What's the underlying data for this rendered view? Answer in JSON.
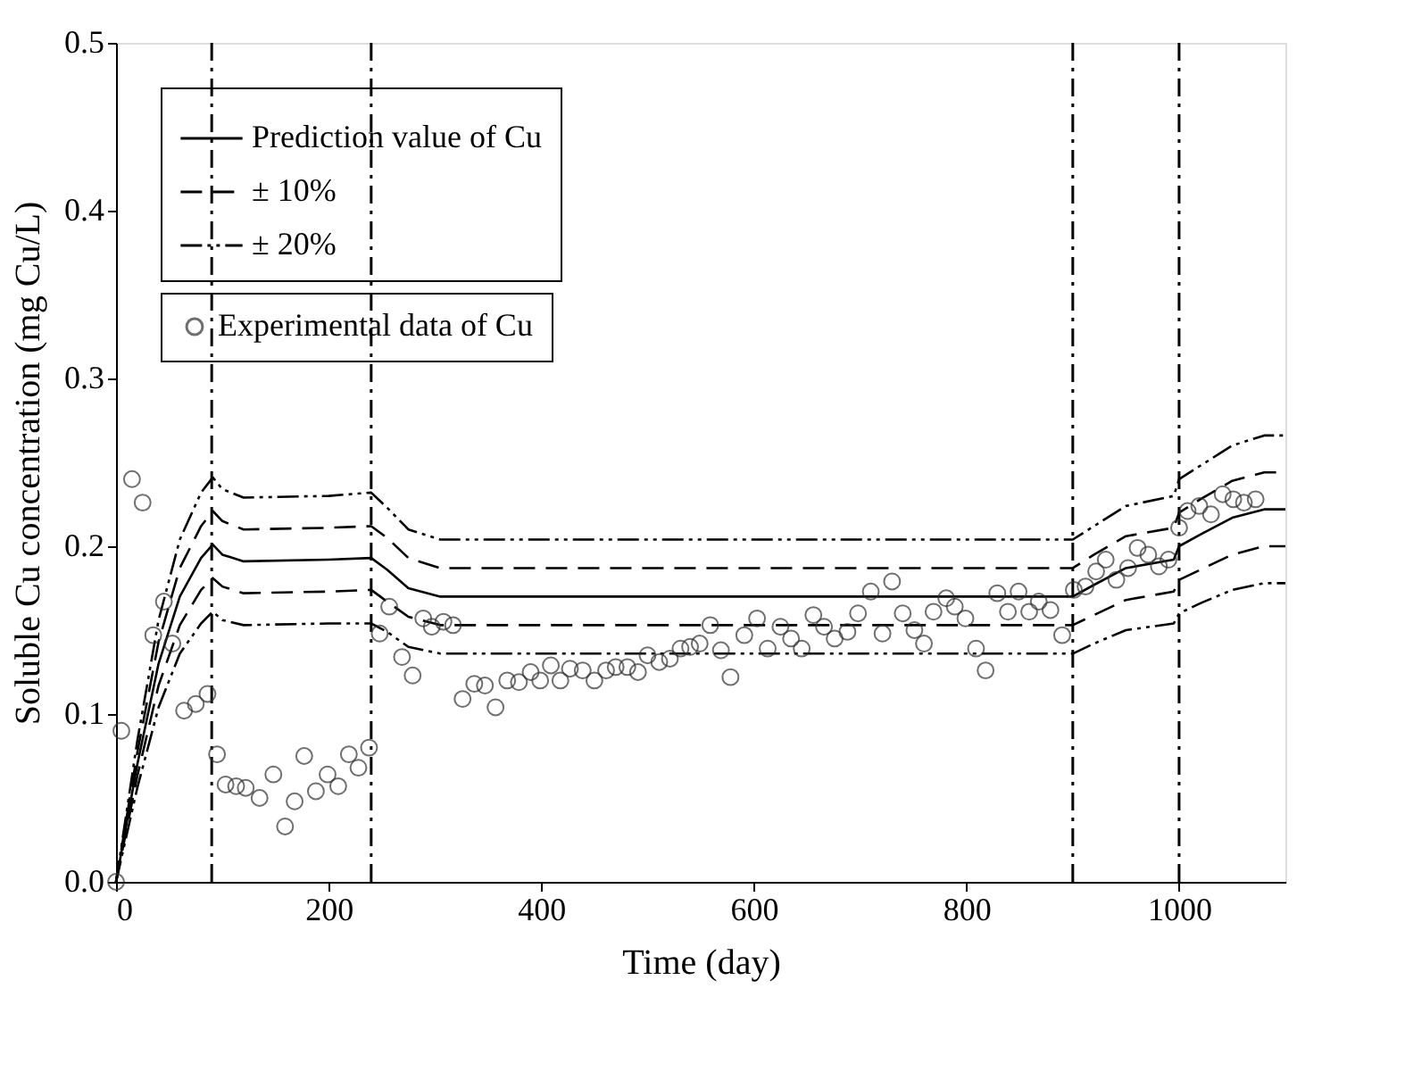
{
  "chart_data": {
    "type": "line",
    "xlabel": "Time (day)",
    "ylabel": "Soluble Cu concentration (mg Cu/L)",
    "xlim": [
      0,
      1100
    ],
    "xticks": [
      0,
      200,
      400,
      600,
      800,
      1000
    ],
    "ylim": [
      0,
      0.5
    ],
    "yticks": [
      {
        "value": 0,
        "label": "0.0"
      },
      {
        "value": 0.1,
        "label": "0.1"
      },
      {
        "value": 0.2,
        "label": "0.2"
      },
      {
        "value": 0.3,
        "label": "0.3"
      },
      {
        "value": 0.4,
        "label": "0.4"
      },
      {
        "value": 0.5,
        "label": "0.5"
      }
    ],
    "grid": false,
    "legend": "top left",
    "x": [
      0,
      20,
      40,
      60,
      80,
      91,
      100,
      120,
      200,
      240,
      255,
      275,
      305,
      900,
      920,
      950,
      995,
      1000,
      1020,
      1050,
      1080,
      1100
    ],
    "series": [
      {
        "name": "Prediction value of Cu",
        "color": "#000000",
        "line_style": "solid",
        "values": [
          0,
          0.07,
          0.13,
          0.17,
          0.193,
          0.201,
          0.195,
          0.191,
          0.192,
          0.193,
          0.186,
          0.175,
          0.17,
          0.17,
          0.177,
          0.187,
          0.192,
          0.2,
          0.207,
          0.217,
          0.222,
          0.222
        ]
      },
      {
        "name": "± 10%",
        "color": "#000000",
        "line_style": "dashed",
        "values": [
          0,
          0.077,
          0.143,
          0.187,
          0.212,
          0.221,
          0.215,
          0.21,
          0.211,
          0.212,
          0.205,
          0.193,
          0.187,
          0.187,
          0.195,
          0.206,
          0.211,
          0.22,
          0.228,
          0.239,
          0.244,
          0.244
        ]
      },
      {
        "color": "#000000",
        "line_style": "dashed",
        "values": [
          0,
          0.063,
          0.117,
          0.153,
          0.174,
          0.181,
          0.176,
          0.172,
          0.173,
          0.174,
          0.167,
          0.158,
          0.153,
          0.153,
          0.159,
          0.168,
          0.173,
          0.18,
          0.186,
          0.195,
          0.2,
          0.2
        ]
      },
      {
        "name": "± 20%",
        "color": "#000000",
        "line_style": "dotted",
        "values": [
          0,
          0.084,
          0.156,
          0.204,
          0.232,
          0.241,
          0.234,
          0.229,
          0.23,
          0.232,
          0.223,
          0.21,
          0.204,
          0.204,
          0.212,
          0.224,
          0.23,
          0.24,
          0.248,
          0.26,
          0.266,
          0.266
        ]
      },
      {
        "color": "#000000",
        "line_style": "dotted",
        "values": [
          0,
          0.056,
          0.104,
          0.136,
          0.154,
          0.161,
          0.156,
          0.153,
          0.154,
          0.154,
          0.149,
          0.14,
          0.136,
          0.136,
          0.142,
          0.15,
          0.154,
          0.16,
          0.166,
          0.174,
          0.178,
          0.178
        ]
      },
      {
        "name": "Experimental data of Cu",
        "type": "scatter",
        "marker": "circle",
        "color": "#333333",
        "x": [
          0,
          5,
          15,
          25,
          35,
          45,
          53,
          64,
          75,
          86,
          95,
          103,
          113,
          122,
          135,
          148,
          159,
          168,
          177,
          188,
          199,
          209,
          219,
          228,
          238,
          248,
          257,
          269,
          279,
          289,
          297,
          308,
          317,
          326,
          337,
          347,
          357,
          368,
          379,
          390,
          399,
          409,
          418,
          427,
          439,
          450,
          461,
          470,
          481,
          491,
          500,
          511,
          521,
          531,
          540,
          549,
          559,
          569,
          578,
          591,
          603,
          613,
          625,
          635,
          645,
          656,
          666,
          676,
          688,
          698,
          710,
          721,
          730,
          740,
          751,
          760,
          769,
          781,
          789,
          799,
          809,
          818,
          829,
          839,
          849,
          859,
          868,
          879,
          890,
          901,
          912,
          922,
          931,
          941,
          952,
          961,
          971,
          981,
          990,
          1000,
          1008,
          1019,
          1030,
          1041,
          1051,
          1061,
          1072
        ],
        "values": [
          0,
          0.09,
          0.24,
          0.226,
          0.147,
          0.167,
          0.142,
          0.102,
          0.106,
          0.112,
          0.076,
          0.058,
          0.057,
          0.056,
          0.05,
          0.064,
          0.033,
          0.048,
          0.075,
          0.054,
          0.064,
          0.057,
          0.076,
          0.068,
          0.08,
          0.148,
          0.164,
          0.134,
          0.123,
          0.157,
          0.152,
          0.155,
          0.153,
          0.109,
          0.118,
          0.117,
          0.104,
          0.12,
          0.119,
          0.125,
          0.12,
          0.129,
          0.12,
          0.127,
          0.126,
          0.12,
          0.126,
          0.128,
          0.128,
          0.125,
          0.135,
          0.131,
          0.133,
          0.139,
          0.14,
          0.142,
          0.153,
          0.138,
          0.122,
          0.147,
          0.157,
          0.139,
          0.152,
          0.145,
          0.139,
          0.159,
          0.152,
          0.145,
          0.149,
          0.16,
          0.173,
          0.148,
          0.179,
          0.16,
          0.15,
          0.142,
          0.161,
          0.169,
          0.164,
          0.157,
          0.139,
          0.126,
          0.172,
          0.161,
          0.173,
          0.161,
          0.167,
          0.162,
          0.147,
          0.174,
          0.176,
          0.185,
          0.192,
          0.18,
          0.187,
          0.199,
          0.195,
          0.188,
          0.192,
          0.211,
          0.221,
          0.224,
          0.219,
          0.231,
          0.228,
          0.226,
          0.228
        ]
      }
    ],
    "ref_lines": [
      {
        "axis": "x",
        "value": 90,
        "line_style": "dashdot"
      },
      {
        "axis": "x",
        "value": 240,
        "line_style": "dashdot"
      },
      {
        "axis": "x",
        "value": 900,
        "line_style": "dashdot"
      },
      {
        "axis": "x",
        "value": 1000,
        "line_style": "dashdot"
      }
    ]
  }
}
